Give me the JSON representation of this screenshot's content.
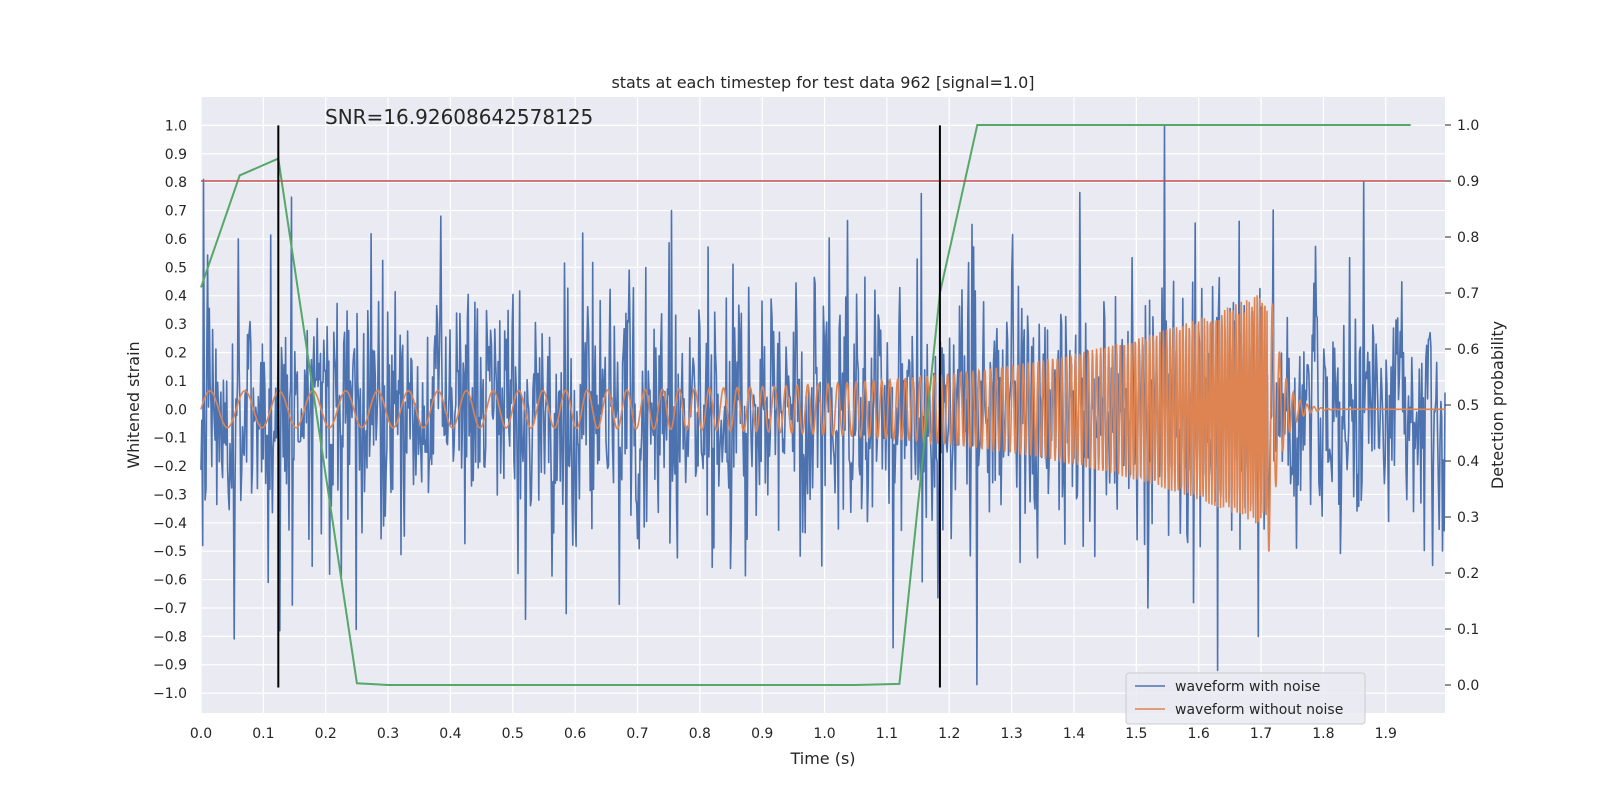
{
  "chart_data": {
    "type": "line",
    "title": "stats at each timestep for test data 962 [signal=1.0]",
    "xlabel": "Time (s)",
    "ylabel": "Whitened strain",
    "ylabel_right": "Detection probability",
    "xlim": [
      0.0,
      1.995
    ],
    "ylim": [
      -1.07,
      1.1
    ],
    "ylim_right": [
      -0.05,
      1.05
    ],
    "x_ticks": [
      0.0,
      0.1,
      0.2,
      0.3,
      0.4,
      0.5,
      0.6,
      0.7,
      0.8,
      0.9,
      1.0,
      1.1,
      1.2,
      1.3,
      1.4,
      1.5,
      1.6,
      1.7,
      1.8,
      1.9
    ],
    "y_ticks": [
      -1.0,
      -0.9,
      -0.8,
      -0.7,
      -0.6,
      -0.5,
      -0.4,
      -0.3,
      -0.2,
      -0.1,
      0.0,
      0.1,
      0.2,
      0.3,
      0.4,
      0.5,
      0.6,
      0.7,
      0.8,
      0.9,
      1.0
    ],
    "y_ticks_right": [
      0.0,
      0.1,
      0.2,
      0.3,
      0.4,
      0.5,
      0.6,
      0.7,
      0.8,
      0.9,
      1.0
    ],
    "grid": true,
    "legend_position": "bottom-right",
    "annotation": "SNR=16.92608642578125",
    "series": [
      {
        "name": "waveform with noise",
        "color": "#4c72b0",
        "axis": "left",
        "noise_amplitude": 0.22,
        "x_range": [
          0.0,
          1.995
        ],
        "points": 1500,
        "peaks": [
          {
            "x": 0.002,
            "y": -0.48
          },
          {
            "x": 0.06,
            "y": 0.6
          },
          {
            "x": 0.108,
            "y": -0.61
          },
          {
            "x": 0.126,
            "y": -0.78
          },
          {
            "x": 0.385,
            "y": 0.68
          },
          {
            "x": 0.52,
            "y": -0.74
          },
          {
            "x": 0.585,
            "y": -0.72
          },
          {
            "x": 0.755,
            "y": 0.7
          },
          {
            "x": 1.11,
            "y": -0.84
          },
          {
            "x": 1.155,
            "y": 0.76
          },
          {
            "x": 1.245,
            "y": -0.97
          },
          {
            "x": 1.545,
            "y": 1.0
          },
          {
            "x": 1.63,
            "y": -0.92
          },
          {
            "x": 1.865,
            "y": 0.8
          },
          {
            "x": 1.975,
            "y": -0.55
          }
        ]
      },
      {
        "name": "waveform without noise",
        "color": "#dd8452",
        "axis": "left",
        "chirp": {
          "x_start": 0.0,
          "x_merger": 1.71,
          "x_end": 1.995,
          "amp_start": 0.065,
          "amp_peak": 0.42,
          "freq_start_hz": 22,
          "freq_peak_hz": 75
        }
      },
      {
        "name": "detection probability",
        "color": "#55a868",
        "axis": "right",
        "x": [
          0.0,
          0.062,
          0.124,
          0.25,
          0.3,
          0.62,
          1.05,
          1.12,
          1.185,
          1.245,
          1.94
        ],
        "y": [
          0.71,
          0.91,
          0.94,
          0.003,
          0.0,
          0.0,
          0.0,
          0.002,
          0.7,
          1.0,
          1.0
        ]
      }
    ],
    "reference_lines": {
      "horizontal_right_axis": {
        "y": 0.9,
        "color": "#c44e52"
      },
      "vertical": [
        {
          "x": 0.124,
          "y_range": [
            -0.98,
            1.0
          ],
          "color": "#000000"
        },
        {
          "x": 1.185,
          "y_range": [
            -0.98,
            1.0
          ],
          "color": "#000000"
        }
      ]
    }
  }
}
